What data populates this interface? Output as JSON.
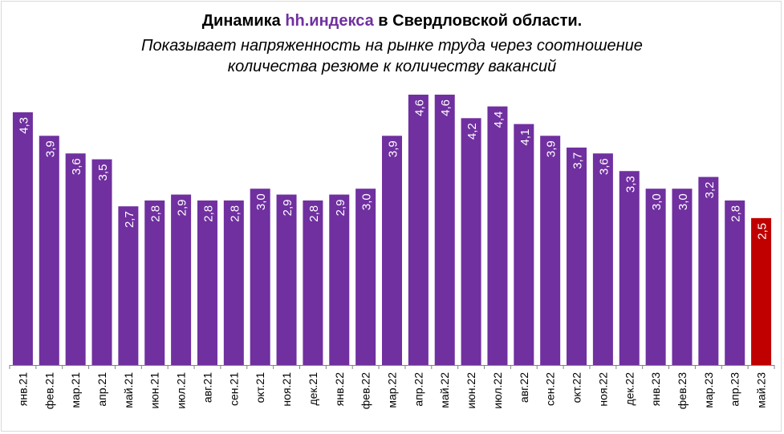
{
  "header": {
    "title_main_1": "Динамика ",
    "title_brand": "hh.индекса",
    "title_main_2": " в Свердловской области.",
    "subtitle_line_1": "Показывает напряженность на рынке труда через соотношение",
    "subtitle_line_2": "количества резюме к количеству вакансий"
  },
  "colors": {
    "bar": "#7030a0",
    "highlight_bar": "#c00000",
    "label": "#ffffff",
    "axis": "#808080"
  },
  "chart_data": {
    "type": "bar",
    "categories": [
      "янв.21",
      "фев.21",
      "мар.21",
      "апр.21",
      "май.21",
      "июн.21",
      "июл.21",
      "авг.21",
      "сен.21",
      "окт.21",
      "ноя.21",
      "дек.21",
      "янв.22",
      "фев.22",
      "мар.22",
      "апр.22",
      "май.22",
      "июн.22",
      "июл.22",
      "авг.22",
      "сен.22",
      "окт.22",
      "ноя.22",
      "дек.22",
      "янв.23",
      "фев.23",
      "мар.23",
      "апр.23",
      "май.23"
    ],
    "values": [
      4.3,
      3.9,
      3.6,
      3.5,
      2.7,
      2.8,
      2.9,
      2.8,
      2.8,
      3.0,
      2.9,
      2.8,
      2.9,
      3.0,
      3.9,
      4.6,
      4.6,
      4.2,
      4.4,
      4.1,
      3.9,
      3.7,
      3.6,
      3.3,
      3.0,
      3.0,
      3.2,
      2.8,
      2.5
    ],
    "value_labels": [
      "4,3",
      "3,9",
      "3,6",
      "3,5",
      "2,7",
      "2,8",
      "2,9",
      "2,8",
      "2,8",
      "3,0",
      "2,9",
      "2,8",
      "2,9",
      "3,0",
      "3,9",
      "4,6",
      "4,6",
      "4,2",
      "4,4",
      "4,1",
      "3,9",
      "3,7",
      "3,6",
      "3,3",
      "3,0",
      "3,0",
      "3,2",
      "2,8",
      "2,5"
    ],
    "highlight_category": "май.23",
    "ylim": [
      0,
      4.6
    ]
  }
}
